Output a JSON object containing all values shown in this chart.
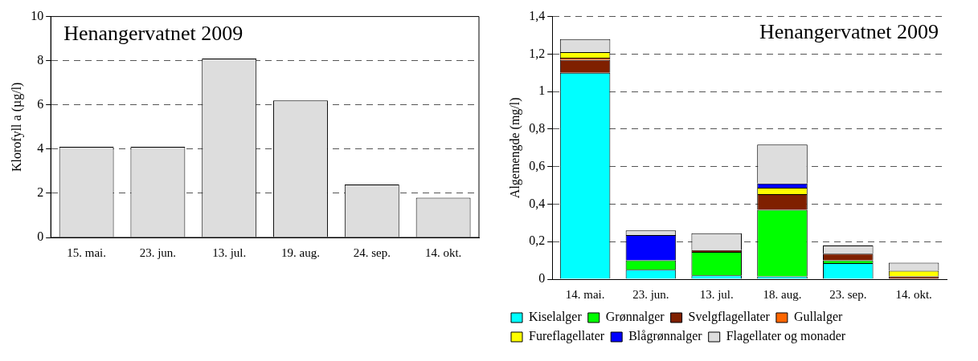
{
  "chart_data": [
    {
      "type": "bar",
      "title": "Henangervatnet 2009",
      "ylabel": "Klorofyll a (µg/l)",
      "categories": [
        "15. mai.",
        "23. jun.",
        "13. jul.",
        "19. aug.",
        "24. sep.",
        "14. okt."
      ],
      "values": [
        4.1,
        4.1,
        8.1,
        6.2,
        2.4,
        1.8
      ],
      "color": "#dddddd",
      "ylim": [
        0,
        10
      ],
      "yticks": [
        0,
        2,
        4,
        6,
        8,
        10
      ],
      "grid": "y"
    },
    {
      "type": "bar",
      "title": "Henangervatnet 2009",
      "ylabel": "Algemengde (mg/l)",
      "categories": [
        "14. mai.",
        "23. jun.",
        "13. jul.",
        "18. aug.",
        "23. sep.",
        "14. okt."
      ],
      "stacked": true,
      "legend": "bottom",
      "grid": "y",
      "ylim": [
        0,
        1.4
      ],
      "yticks": [
        0,
        {
          "value": 0.2,
          "label": "0,2"
        },
        {
          "value": 0.4,
          "label": "0,4"
        },
        {
          "value": 0.6,
          "label": "0,6"
        },
        {
          "value": 0.8,
          "label": "0,8"
        },
        1,
        {
          "value": 1.2,
          "label": "1,2"
        },
        {
          "value": 1.4,
          "label": "1,4"
        }
      ],
      "series": [
        {
          "name": "Kiselalger",
          "color": "#00ffff",
          "values": [
            1.1,
            0.05,
            0.02,
            0.015,
            0.086,
            0
          ]
        },
        {
          "name": "Grønnalger",
          "color": "#00ff00",
          "values": [
            0,
            0.05,
            0.125,
            0.355,
            0.015,
            0
          ]
        },
        {
          "name": "Svelgflagellater",
          "color": "#7f2000",
          "values": [
            0.07,
            0,
            0.01,
            0.083,
            0.035,
            0.015
          ]
        },
        {
          "name": "Gullalger",
          "color": "#ff6600",
          "values": [
            0.01,
            0,
            0,
            0,
            0,
            0
          ]
        },
        {
          "name": "Fureflagellater",
          "color": "#ffff00",
          "values": [
            0.03,
            0,
            0,
            0.034,
            0,
            0.03
          ]
        },
        {
          "name": "Blågrønnalger",
          "color": "#0000ff",
          "values": [
            0,
            0.135,
            0,
            0.023,
            0,
            0
          ]
        },
        {
          "name": "Flagellater og monader",
          "color": "#dddddd",
          "values": [
            0.07,
            0.025,
            0.09,
            0.207,
            0.044,
            0.043
          ]
        }
      ]
    }
  ]
}
